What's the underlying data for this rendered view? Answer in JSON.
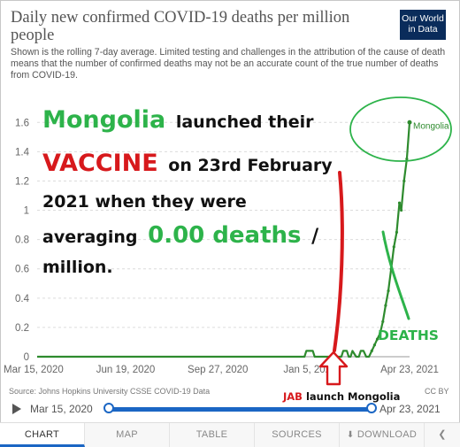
{
  "title": "Daily new confirmed COVID-19 deaths per million people",
  "subtitle": "Shown is the rolling 7-day average. Limited testing and challenges in the attribution of the cause of death means that the number of confirmed deaths may not be an accurate count of the true number of deaths from COVID-19.",
  "logo": {
    "line1": "Our World",
    "line2": "in Data"
  },
  "annotation": {
    "country": "Mongolia",
    "launched": "launched their",
    "vaccine": "VACCINE",
    "on_date": "on 23rd February",
    "line3": "2021 when they were",
    "averaging": "averaging",
    "value": "0.00 deaths",
    "slash": "/",
    "million": "million.",
    "deaths_label": "DEATHS",
    "jab_prefix": "JAB",
    "jab_rest": "launch Mongolia"
  },
  "source": "Source: Johns Hopkins University CSSE COVID-19 Data",
  "license": "CC BY",
  "timeline": {
    "start": "Mar 15, 2020",
    "end": "Apr 23, 2021"
  },
  "tabs": [
    "CHART",
    "MAP",
    "TABLE",
    "SOURCES",
    "DOWNLOAD"
  ],
  "colors": {
    "series": "#2e8b2e",
    "annotation_green": "#2db34a",
    "annotation_red": "#d7191c",
    "timeline": "#1b66c4"
  },
  "icons": [
    "play-icon",
    "download-icon",
    "share-icon",
    "up-arrow-icon"
  ],
  "chart_data": {
    "type": "line",
    "title": "Daily new confirmed COVID-19 deaths per million people",
    "xlabel": "",
    "ylabel": "",
    "x_ticks": [
      "Mar 15, 2020",
      "Jun 19, 2020",
      "Sep 27, 2020",
      "Jan 5, 2021",
      "Apr 23, 2021"
    ],
    "y_ticks": [
      "0",
      "0.2",
      "0.4",
      "0.6",
      "0.8",
      "1",
      "1.2",
      "1.4",
      "1.6"
    ],
    "ylim": [
      0,
      1.65
    ],
    "xlim": [
      "2020-03-15",
      "2021-04-23"
    ],
    "grid": true,
    "series": [
      {
        "name": "Mongolia",
        "color": "#2e8b2e",
        "x": [
          "2020-03-15",
          "2020-12-30",
          "2021-01-01",
          "2021-01-08",
          "2021-01-10",
          "2021-02-08",
          "2021-02-10",
          "2021-02-14",
          "2021-02-16",
          "2021-02-18",
          "2021-02-20",
          "2021-02-24",
          "2021-02-27",
          "2021-03-01",
          "2021-03-04",
          "2021-03-07",
          "2021-03-10",
          "2021-03-13",
          "2021-03-16",
          "2021-03-19",
          "2021-03-22",
          "2021-03-25",
          "2021-03-28",
          "2021-03-31",
          "2021-04-03",
          "2021-04-06",
          "2021-04-09",
          "2021-04-12",
          "2021-04-14",
          "2021-04-17",
          "2021-04-20",
          "2021-04-23"
        ],
        "y": [
          0,
          0,
          0.04,
          0.04,
          0,
          0,
          0.04,
          0.04,
          0,
          0,
          0.04,
          0,
          0,
          0.04,
          0.04,
          0,
          0,
          0.04,
          0.08,
          0.12,
          0.16,
          0.24,
          0.35,
          0.45,
          0.6,
          0.75,
          0.85,
          1.05,
          1.0,
          1.2,
          1.35,
          1.6
        ]
      }
    ],
    "annotations": [
      "Mongolia"
    ]
  }
}
